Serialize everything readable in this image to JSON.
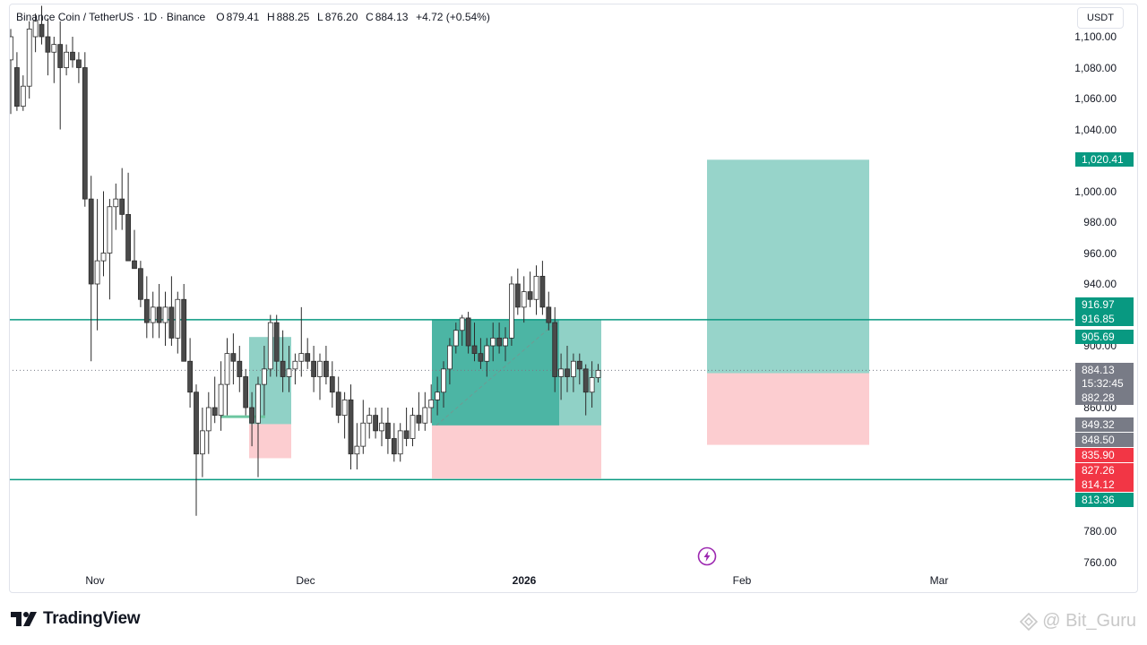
{
  "legend": {
    "symbol": "Binance Coin / TetherUS · 1D · Binance",
    "open_label": "O",
    "open": "879.41",
    "high_label": "H",
    "high": "888.25",
    "low_label": "L",
    "low": "876.20",
    "close_label": "C",
    "close": "884.13",
    "change": "+4.72 (+0.54%)"
  },
  "currency_button": "USDT",
  "price_axis": {
    "ticks": [
      "1,100.00",
      "1,080.00",
      "1,060.00",
      "1,040.00",
      "1,000.00",
      "980.00",
      "960.00",
      "940.00",
      "900.00",
      "860.00",
      "780.00",
      "760.00"
    ]
  },
  "time_axis": {
    "labels": [
      {
        "text": "Nov",
        "bold": false
      },
      {
        "text": "Dec",
        "bold": false
      },
      {
        "text": "2026",
        "bold": true
      },
      {
        "text": "Feb",
        "bold": false
      },
      {
        "text": "Mar",
        "bold": false
      }
    ]
  },
  "price_tags": [
    {
      "text": "1,020.41",
      "color": "#089981"
    },
    {
      "text": "916.97",
      "color": "#089981"
    },
    {
      "text": "916.85",
      "color": "#089981"
    },
    {
      "text": "905.69",
      "color": "#089981"
    },
    {
      "text": "884.13",
      "color": "#787b86"
    },
    {
      "text": "15:32:45",
      "color": "#787b86"
    },
    {
      "text": "882.28",
      "color": "#787b86"
    },
    {
      "text": "849.32",
      "color": "#787b86"
    },
    {
      "text": "848.50",
      "color": "#787b86"
    },
    {
      "text": "835.90",
      "color": "#f23645"
    },
    {
      "text": "827.26",
      "color": "#f23645"
    },
    {
      "text": "814.12",
      "color": "#f23645"
    },
    {
      "text": "813.36",
      "color": "#089981"
    }
  ],
  "chart_data": {
    "type": "candlestick",
    "symbol": "BNBUSDT",
    "interval": "1D",
    "ylim": [
      750,
      1110
    ],
    "candles": [
      {
        "o": 1085,
        "h": 1105,
        "l": 1050,
        "c": 1100
      },
      {
        "o": 1080,
        "h": 1090,
        "l": 1052,
        "c": 1055
      },
      {
        "o": 1055,
        "h": 1075,
        "l": 1052,
        "c": 1068
      },
      {
        "o": 1068,
        "h": 1110,
        "l": 1060,
        "c": 1105
      },
      {
        "o": 1100,
        "h": 1115,
        "l": 1090,
        "c": 1110
      },
      {
        "o": 1108,
        "h": 1120,
        "l": 1095,
        "c": 1100
      },
      {
        "o": 1100,
        "h": 1112,
        "l": 1075,
        "c": 1090
      },
      {
        "o": 1090,
        "h": 1100,
        "l": 1070,
        "c": 1095
      },
      {
        "o": 1095,
        "h": 1110,
        "l": 1040,
        "c": 1080
      },
      {
        "o": 1080,
        "h": 1095,
        "l": 1075,
        "c": 1090
      },
      {
        "o": 1090,
        "h": 1100,
        "l": 1080,
        "c": 1085
      },
      {
        "o": 1085,
        "h": 1090,
        "l": 1070,
        "c": 1080
      },
      {
        "o": 1080,
        "h": 1090,
        "l": 990,
        "c": 995
      },
      {
        "o": 995,
        "h": 1010,
        "l": 890,
        "c": 940
      },
      {
        "o": 940,
        "h": 995,
        "l": 910,
        "c": 955
      },
      {
        "o": 955,
        "h": 1000,
        "l": 945,
        "c": 960
      },
      {
        "o": 960,
        "h": 995,
        "l": 930,
        "c": 990
      },
      {
        "o": 990,
        "h": 1005,
        "l": 975,
        "c": 995
      },
      {
        "o": 995,
        "h": 1015,
        "l": 975,
        "c": 985
      },
      {
        "o": 985,
        "h": 1012,
        "l": 955,
        "c": 955
      },
      {
        "o": 955,
        "h": 975,
        "l": 950,
        "c": 950
      },
      {
        "o": 950,
        "h": 955,
        "l": 925,
        "c": 930
      },
      {
        "o": 930,
        "h": 945,
        "l": 905,
        "c": 915
      },
      {
        "o": 915,
        "h": 935,
        "l": 905,
        "c": 925
      },
      {
        "o": 925,
        "h": 940,
        "l": 905,
        "c": 915
      },
      {
        "o": 915,
        "h": 935,
        "l": 900,
        "c": 925
      },
      {
        "o": 925,
        "h": 945,
        "l": 900,
        "c": 905
      },
      {
        "o": 905,
        "h": 935,
        "l": 895,
        "c": 930
      },
      {
        "o": 930,
        "h": 940,
        "l": 890,
        "c": 890
      },
      {
        "o": 890,
        "h": 905,
        "l": 860,
        "c": 870
      },
      {
        "o": 870,
        "h": 875,
        "l": 790,
        "c": 830
      },
      {
        "o": 830,
        "h": 860,
        "l": 815,
        "c": 845
      },
      {
        "o": 845,
        "h": 870,
        "l": 830,
        "c": 860
      },
      {
        "o": 860,
        "h": 880,
        "l": 850,
        "c": 855
      },
      {
        "o": 855,
        "h": 890,
        "l": 845,
        "c": 875
      },
      {
        "o": 875,
        "h": 905,
        "l": 855,
        "c": 895
      },
      {
        "o": 895,
        "h": 908,
        "l": 875,
        "c": 890
      },
      {
        "o": 890,
        "h": 900,
        "l": 870,
        "c": 880
      },
      {
        "o": 880,
        "h": 885,
        "l": 855,
        "c": 860
      },
      {
        "o": 860,
        "h": 870,
        "l": 835,
        "c": 850
      },
      {
        "o": 850,
        "h": 880,
        "l": 815,
        "c": 875
      },
      {
        "o": 875,
        "h": 900,
        "l": 855,
        "c": 885
      },
      {
        "o": 885,
        "h": 920,
        "l": 880,
        "c": 915
      },
      {
        "o": 915,
        "h": 920,
        "l": 880,
        "c": 890
      },
      {
        "o": 890,
        "h": 910,
        "l": 870,
        "c": 880
      },
      {
        "o": 880,
        "h": 900,
        "l": 870,
        "c": 885
      },
      {
        "o": 885,
        "h": 895,
        "l": 875,
        "c": 890
      },
      {
        "o": 890,
        "h": 925,
        "l": 880,
        "c": 895
      },
      {
        "o": 895,
        "h": 905,
        "l": 885,
        "c": 890
      },
      {
        "o": 890,
        "h": 900,
        "l": 870,
        "c": 880
      },
      {
        "o": 880,
        "h": 895,
        "l": 865,
        "c": 890
      },
      {
        "o": 890,
        "h": 900,
        "l": 875,
        "c": 880
      },
      {
        "o": 880,
        "h": 890,
        "l": 860,
        "c": 870
      },
      {
        "o": 870,
        "h": 880,
        "l": 850,
        "c": 855
      },
      {
        "o": 855,
        "h": 870,
        "l": 840,
        "c": 865
      },
      {
        "o": 865,
        "h": 875,
        "l": 820,
        "c": 830
      },
      {
        "o": 830,
        "h": 850,
        "l": 820,
        "c": 835
      },
      {
        "o": 835,
        "h": 865,
        "l": 830,
        "c": 850
      },
      {
        "o": 850,
        "h": 860,
        "l": 840,
        "c": 855
      },
      {
        "o": 855,
        "h": 860,
        "l": 840,
        "c": 845
      },
      {
        "o": 845,
        "h": 860,
        "l": 835,
        "c": 850
      },
      {
        "o": 850,
        "h": 860,
        "l": 830,
        "c": 840
      },
      {
        "o": 840,
        "h": 850,
        "l": 825,
        "c": 830
      },
      {
        "o": 830,
        "h": 850,
        "l": 825,
        "c": 845
      },
      {
        "o": 845,
        "h": 860,
        "l": 835,
        "c": 840
      },
      {
        "o": 840,
        "h": 860,
        "l": 835,
        "c": 855
      },
      {
        "o": 855,
        "h": 870,
        "l": 845,
        "c": 850
      },
      {
        "o": 850,
        "h": 870,
        "l": 845,
        "c": 860
      },
      {
        "o": 860,
        "h": 875,
        "l": 850,
        "c": 865
      },
      {
        "o": 865,
        "h": 880,
        "l": 855,
        "c": 870
      },
      {
        "o": 870,
        "h": 890,
        "l": 860,
        "c": 885
      },
      {
        "o": 885,
        "h": 905,
        "l": 875,
        "c": 900
      },
      {
        "o": 900,
        "h": 915,
        "l": 895,
        "c": 910
      },
      {
        "o": 910,
        "h": 920,
        "l": 900,
        "c": 918
      },
      {
        "o": 918,
        "h": 922,
        "l": 895,
        "c": 900
      },
      {
        "o": 900,
        "h": 915,
        "l": 890,
        "c": 895
      },
      {
        "o": 895,
        "h": 905,
        "l": 885,
        "c": 890
      },
      {
        "o": 890,
        "h": 905,
        "l": 880,
        "c": 900
      },
      {
        "o": 900,
        "h": 915,
        "l": 890,
        "c": 905
      },
      {
        "o": 905,
        "h": 915,
        "l": 895,
        "c": 900
      },
      {
        "o": 900,
        "h": 912,
        "l": 890,
        "c": 905
      },
      {
        "o": 905,
        "h": 945,
        "l": 900,
        "c": 940
      },
      {
        "o": 940,
        "h": 950,
        "l": 920,
        "c": 925
      },
      {
        "o": 925,
        "h": 945,
        "l": 915,
        "c": 935
      },
      {
        "o": 935,
        "h": 948,
        "l": 925,
        "c": 930
      },
      {
        "o": 930,
        "h": 952,
        "l": 920,
        "c": 945
      },
      {
        "o": 945,
        "h": 955,
        "l": 920,
        "c": 925
      },
      {
        "o": 925,
        "h": 935,
        "l": 910,
        "c": 915
      },
      {
        "o": 915,
        "h": 925,
        "l": 870,
        "c": 880
      },
      {
        "o": 880,
        "h": 895,
        "l": 865,
        "c": 885
      },
      {
        "o": 885,
        "h": 900,
        "l": 870,
        "c": 880
      },
      {
        "o": 880,
        "h": 895,
        "l": 870,
        "c": 890
      },
      {
        "o": 890,
        "h": 895,
        "l": 875,
        "c": 885
      },
      {
        "o": 885,
        "h": 888,
        "l": 855,
        "c": 870
      },
      {
        "o": 870,
        "h": 890,
        "l": 860,
        "c": 879.41
      },
      {
        "o": 879.41,
        "h": 888.25,
        "l": 876.2,
        "c": 884.13
      }
    ],
    "horizontal_lines": [
      {
        "price": 916.9,
        "color": "#089981"
      },
      {
        "price": 813.4,
        "color": "#089981"
      }
    ],
    "positions": [
      {
        "type": "long",
        "entry": 849.32,
        "target": 905.69,
        "stop": 827.26
      },
      {
        "type": "long",
        "entry": 848.5,
        "target": 916.97,
        "stop": 814.12
      },
      {
        "type": "long",
        "entry": 882.28,
        "target": 1020.41,
        "stop": 835.9
      }
    ]
  },
  "footer": {
    "brand": "TradingView",
    "watermark": "@ Bit_Guru"
  }
}
